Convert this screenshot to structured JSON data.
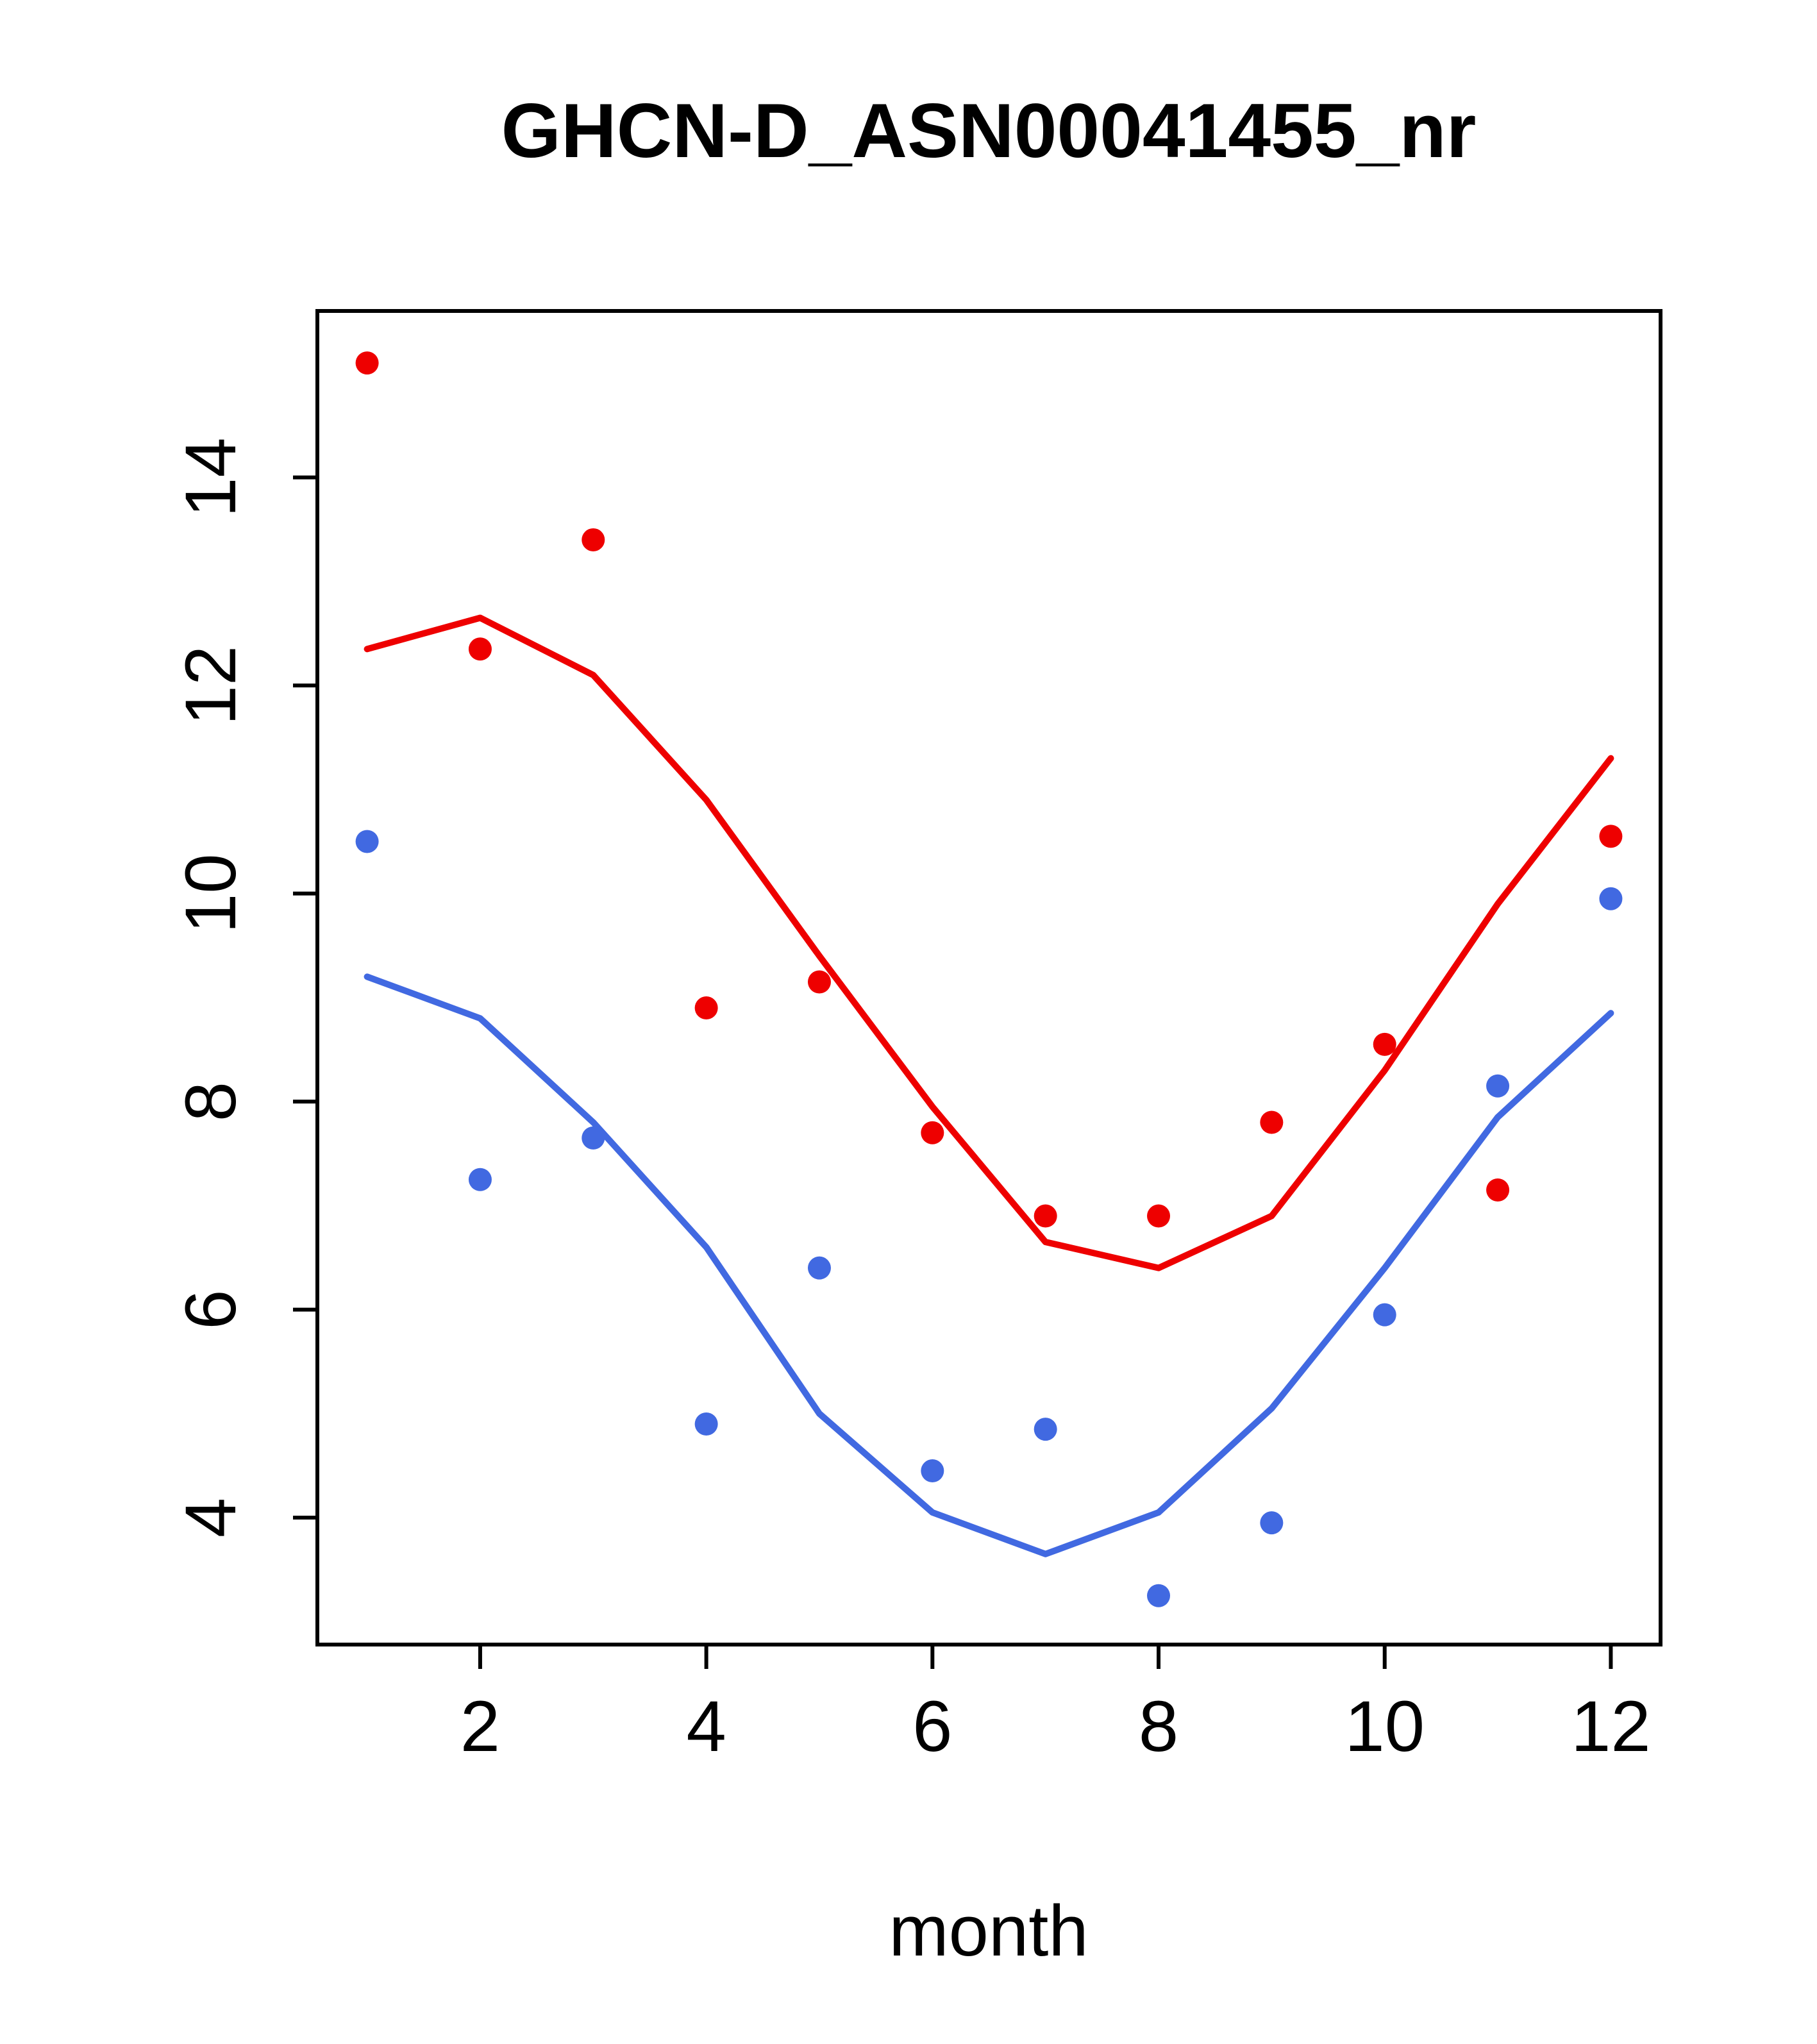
{
  "chart_data": {
    "type": "scatter",
    "title": "GHCN-D_ASN00041455_nr",
    "xlabel": "month",
    "ylabel": "",
    "xlim": [
      0.56,
      12.44
    ],
    "ylim": [
      2.78,
      15.6
    ],
    "x_ticks": [
      2,
      4,
      6,
      8,
      10,
      12
    ],
    "y_ticks": [
      4,
      6,
      8,
      10,
      12,
      14
    ],
    "grid": "off",
    "legend": "none",
    "x": [
      1,
      2,
      3,
      4,
      5,
      6,
      7,
      8,
      9,
      10,
      11,
      12
    ],
    "series": [
      {
        "name": "red-points",
        "role": "points",
        "color": "#ee0000",
        "values": [
          15.1,
          12.35,
          13.4,
          8.9,
          9.15,
          7.7,
          6.9,
          6.9,
          7.8,
          8.55,
          7.15,
          10.55
        ]
      },
      {
        "name": "red-line",
        "role": "line",
        "color": "#ee0000",
        "values": [
          12.35,
          12.65,
          12.1,
          10.9,
          9.4,
          7.95,
          6.65,
          6.4,
          6.9,
          8.3,
          9.9,
          11.3
        ]
      },
      {
        "name": "blue-points",
        "role": "points",
        "color": "#4169e1",
        "values": [
          10.5,
          7.25,
          7.65,
          4.9,
          6.4,
          4.45,
          4.85,
          3.25,
          3.95,
          5.95,
          8.15,
          9.95
        ]
      },
      {
        "name": "blue-line",
        "role": "line",
        "color": "#4169e1",
        "values": [
          9.2,
          8.8,
          7.8,
          6.6,
          5.0,
          4.05,
          3.65,
          4.05,
          5.05,
          6.4,
          7.85,
          8.85
        ]
      }
    ]
  }
}
